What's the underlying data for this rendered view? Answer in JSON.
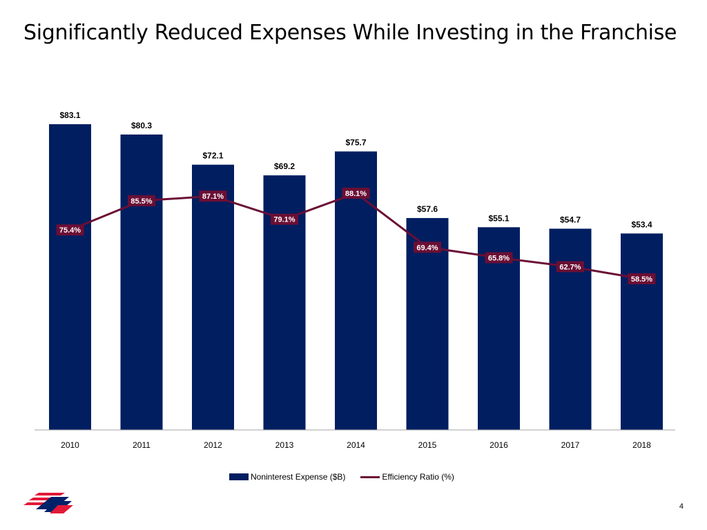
{
  "title": "Significantly Reduced Expenses While Investing in the Franchise",
  "page_number": "4",
  "colors": {
    "bar": "#001e60",
    "line": "#6b0f35",
    "label_box": "#6b0f35"
  },
  "logo": {
    "icon": "bank-flag-logo-icon"
  },
  "chart_data": {
    "type": "bar",
    "categories": [
      "2010",
      "2011",
      "2012",
      "2013",
      "2014",
      "2015",
      "2016",
      "2017",
      "2018"
    ],
    "series": [
      {
        "name": "Noninterest Expense ($B)",
        "type": "bar",
        "values": [
          83.1,
          80.3,
          72.1,
          69.2,
          75.7,
          57.6,
          55.1,
          54.7,
          53.4
        ],
        "labels": [
          "$83.1",
          "$80.3",
          "$72.1",
          "$69.2",
          "$75.7",
          "$57.6",
          "$55.1",
          "$54.7",
          "$53.4"
        ]
      },
      {
        "name": "Efficiency Ratio (%)",
        "type": "line",
        "values": [
          75.4,
          85.5,
          87.1,
          79.1,
          88.1,
          69.4,
          65.8,
          62.7,
          58.5
        ],
        "labels": [
          "75.4%",
          "85.5%",
          "87.1%",
          "79.1%",
          "88.1%",
          "69.4%",
          "65.8%",
          "62.7%",
          "58.5%"
        ]
      }
    ],
    "legend_position": "bottom",
    "grid": false
  }
}
